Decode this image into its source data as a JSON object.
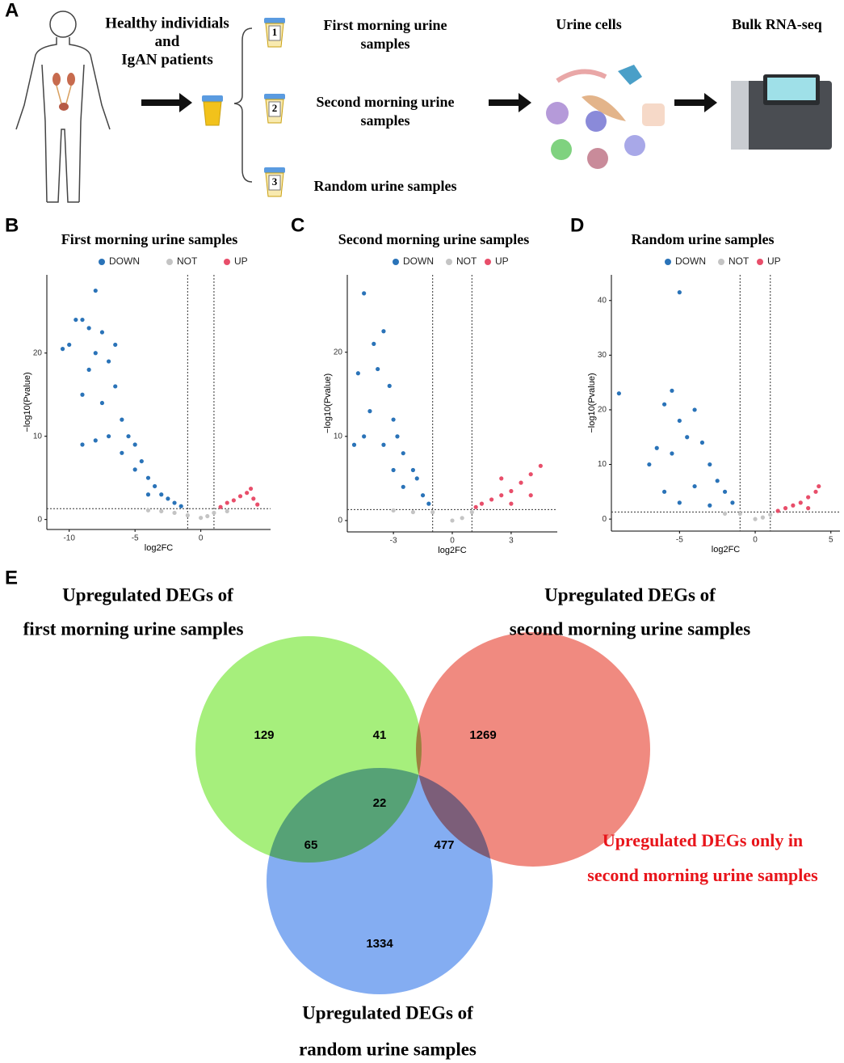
{
  "panel_labels": [
    "A",
    "B",
    "C",
    "D",
    "E"
  ],
  "workflow": {
    "subjects": [
      "Healthy individials",
      "and",
      "IgAN  patients"
    ],
    "samples": [
      {
        "number": "1",
        "lines": [
          "First  morning urine",
          "samples"
        ]
      },
      {
        "number": "2",
        "lines": [
          "Second morning urine",
          "samples"
        ]
      },
      {
        "number": "3",
        "lines": [
          "Random urine samples"
        ]
      }
    ],
    "cells": "Urine cells",
    "sequencing": "Bulk RNA-seq"
  },
  "chart_data": [
    {
      "type": "scatter",
      "title": "First morning urine samples",
      "x_label": "log2FC",
      "y_label": "−log10(Pvalue)",
      "xlim": [
        -11.7,
        5.3
      ],
      "ylim": [
        -1.2,
        29.4
      ],
      "xticks": [
        -10,
        -5,
        0
      ],
      "yticks": [
        0,
        10,
        20
      ],
      "thresholds": {
        "x": [
          -1,
          1
        ],
        "y": 1.3
      },
      "series": [
        {
          "name": "DOWN",
          "color": "#2a73b8",
          "x": [
            -10.5,
            -10,
            -9.5,
            -9,
            -8,
            -8.5,
            -7.5,
            -9,
            -8.5,
            -8,
            -7,
            -6.5,
            -7.5,
            -6.5,
            -6,
            -5.5,
            -5,
            -4.5,
            -4,
            -3.5,
            -3,
            -2.5,
            -2,
            -1.5,
            -6,
            -5,
            -4,
            -7,
            -8,
            -9
          ],
          "values": [
            20.5,
            21,
            24,
            24,
            27.5,
            23,
            22.5,
            15,
            18,
            20,
            19,
            21,
            14,
            16,
            12,
            10,
            9,
            7,
            5,
            4,
            3,
            2.5,
            2,
            1.6,
            8,
            6,
            3,
            10,
            9.5,
            9
          ]
        },
        {
          "name": "NOT",
          "color": "#c4c4c4",
          "x": [
            -4,
            -3,
            -2,
            -1,
            0,
            0.5,
            1,
            2
          ],
          "values": [
            1.1,
            1,
            0.8,
            0.5,
            0.2,
            0.4,
            0.8,
            1
          ]
        },
        {
          "name": "UP",
          "color": "#e84e6a",
          "x": [
            1.5,
            2,
            2.5,
            3,
            3.5,
            3.8,
            4,
            4.3
          ],
          "values": [
            1.5,
            2,
            2.3,
            2.8,
            3.2,
            3.7,
            2.5,
            1.8
          ]
        }
      ]
    },
    {
      "type": "scatter",
      "title": "Second morning urine samples",
      "x_label": "log2FC",
      "y_label": "−log10(Pvalue)",
      "xlim": [
        -5.35,
        5.35
      ],
      "ylim": [
        -1.35,
        29.2
      ],
      "xticks": [
        -3,
        0,
        3
      ],
      "yticks": [
        0,
        10,
        20
      ],
      "thresholds": {
        "x": [
          -1,
          1
        ],
        "y": 1.3
      },
      "series": [
        {
          "name": "DOWN",
          "color": "#2a73b8",
          "x": [
            -4.5,
            -4.8,
            -4,
            -3.5,
            -3.8,
            -3.2,
            -4.2,
            -3,
            -2.8,
            -2.5,
            -2,
            -1.8,
            -1.5,
            -1.2,
            -3.5,
            -4.5,
            -2.5,
            -3,
            -5
          ],
          "values": [
            27,
            17.5,
            21,
            22.5,
            18,
            16,
            13,
            12,
            10,
            8,
            6,
            5,
            3,
            2,
            9,
            10,
            4,
            6,
            9
          ]
        },
        {
          "name": "NOT",
          "color": "#c4c4c4",
          "x": [
            -3,
            -2,
            -1,
            0,
            0.5,
            1
          ],
          "values": [
            1.2,
            1,
            1,
            0,
            0.3,
            1
          ]
        },
        {
          "name": "UP",
          "color": "#e84e6a",
          "x": [
            1.2,
            1.5,
            2,
            2.5,
            3,
            3.5,
            4,
            4.5,
            3,
            2.5,
            4
          ],
          "values": [
            1.6,
            2,
            2.5,
            3,
            3.5,
            4.5,
            5.5,
            6.5,
            2,
            5,
            3
          ]
        }
      ]
    },
    {
      "type": "scatter",
      "title": "Random urine samples",
      "x_label": "log2FC",
      "y_label": "−log10(Pvalue)",
      "xlim": [
        -9.5,
        5.6
      ],
      "ylim": [
        -2.2,
        44.7
      ],
      "xticks": [
        -5,
        0,
        5
      ],
      "yticks": [
        0,
        10,
        20,
        30,
        40
      ],
      "thresholds": {
        "x": [
          -1,
          1
        ],
        "y": 1.3
      },
      "series": [
        {
          "name": "DOWN",
          "color": "#2a73b8",
          "x": [
            -9,
            -5,
            -5.5,
            -6,
            -5,
            -4,
            -4.5,
            -3.5,
            -6.5,
            -5.5,
            -3,
            -2.5,
            -2,
            -1.5,
            -4,
            -6,
            -5,
            -3,
            -7
          ],
          "values": [
            23,
            41.5,
            23.5,
            21,
            18,
            20,
            15,
            14,
            13,
            12,
            10,
            7,
            5,
            3,
            6,
            5,
            3,
            2.5,
            10
          ]
        },
        {
          "name": "NOT",
          "color": "#c4c4c4",
          "x": [
            -2,
            -1,
            0,
            0.5,
            1
          ],
          "values": [
            1,
            1,
            0,
            0.3,
            0.8
          ]
        },
        {
          "name": "UP",
          "color": "#e84e6a",
          "x": [
            1.5,
            2,
            2.5,
            3,
            3.5,
            4,
            4.2,
            3.5
          ],
          "values": [
            1.5,
            2,
            2.5,
            3,
            4,
            5,
            6,
            2
          ]
        }
      ]
    },
    {
      "type": "venn",
      "sets": [
        {
          "label": [
            "Upregulated DEGs of",
            "first morning urine samples"
          ],
          "color": "#a6ef7c"
        },
        {
          "label": [
            "Upregulated DEGs of",
            "second morning urine samples"
          ],
          "color": "#f08a80"
        },
        {
          "label": [
            "Upregulated DEGs of",
            "random urine samples"
          ],
          "color": "#84adf2"
        }
      ],
      "regions": [
        {
          "sets": [
            0
          ],
          "value": 129
        },
        {
          "sets": [
            0,
            1
          ],
          "value": 41
        },
        {
          "sets": [
            1
          ],
          "value": 1269
        },
        {
          "sets": [
            0,
            1,
            2
          ],
          "value": 22
        },
        {
          "sets": [
            0,
            2
          ],
          "value": 65
        },
        {
          "sets": [
            1,
            2
          ],
          "value": 477
        },
        {
          "sets": [
            2
          ],
          "value": 1334
        }
      ],
      "annotation": [
        "Upregulated DEGs only in",
        "second morning urine samples"
      ]
    }
  ]
}
